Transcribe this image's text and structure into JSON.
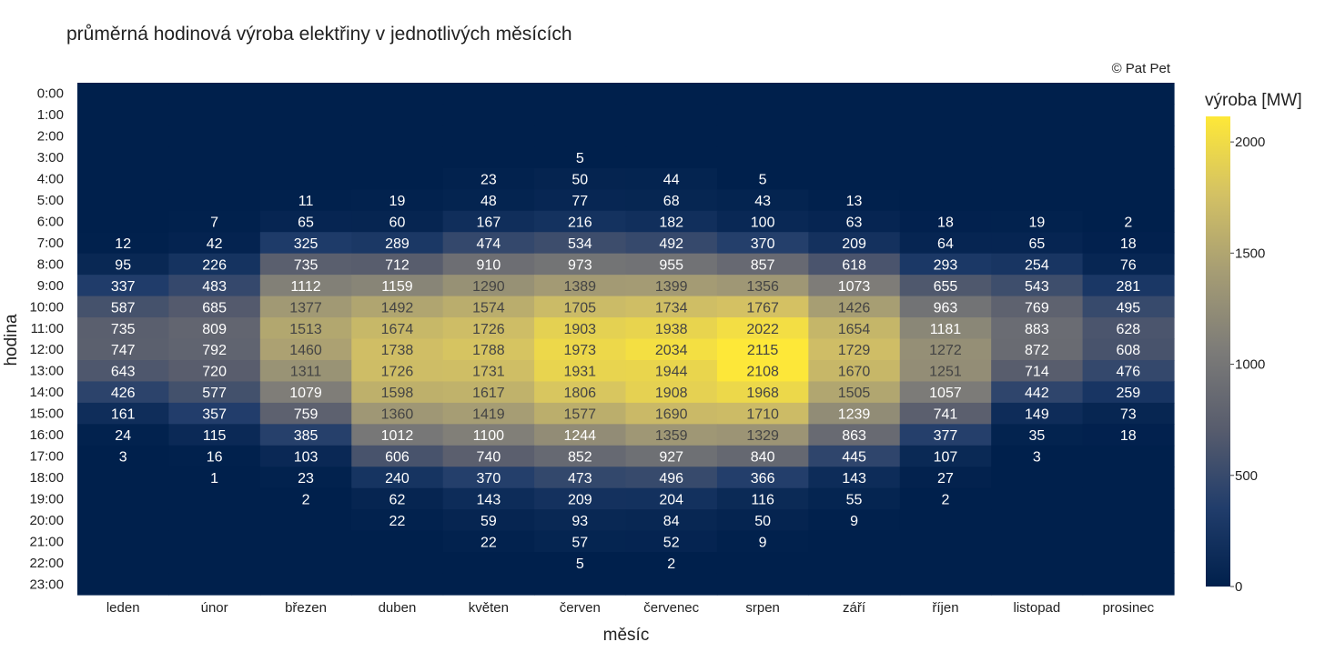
{
  "page": {
    "title": "průměrná hodinová výroba elektřiny v jednotlivých měsících",
    "credit": "© Pat Pet"
  },
  "colors": {
    "background": "#ffffff",
    "scale": [
      "#00204c",
      "#213d6b",
      "#575c6d",
      "#7c7b78",
      "#a59c74",
      "#d3c164",
      "#fee838"
    ]
  },
  "chart_data": {
    "type": "heatmap",
    "title": "průměrná hodinová výroba elektřiny v jednotlivých měsících",
    "xlabel": "měsíc",
    "ylabel": "hodina",
    "colorbar_title": "výroba [MW]",
    "colorbar_ticks": [
      0,
      500,
      1000,
      1500,
      2000
    ],
    "zrange": [
      0,
      2115
    ],
    "x": [
      "leden",
      "únor",
      "březen",
      "duben",
      "květen",
      "červen",
      "červenec",
      "srpen",
      "září",
      "říjen",
      "listopad",
      "prosinec"
    ],
    "y": [
      "0:00",
      "1:00",
      "2:00",
      "3:00",
      "4:00",
      "5:00",
      "6:00",
      "7:00",
      "8:00",
      "9:00",
      "10:00",
      "11:00",
      "12:00",
      "13:00",
      "14:00",
      "15:00",
      "16:00",
      "17:00",
      "18:00",
      "19:00",
      "20:00",
      "21:00",
      "22:00",
      "23:00"
    ],
    "z": [
      [
        null,
        null,
        null,
        null,
        null,
        null,
        null,
        null,
        null,
        null,
        null,
        null
      ],
      [
        null,
        null,
        null,
        null,
        null,
        null,
        null,
        null,
        null,
        null,
        null,
        null
      ],
      [
        null,
        null,
        null,
        null,
        null,
        null,
        null,
        null,
        null,
        null,
        null,
        null
      ],
      [
        null,
        null,
        null,
        null,
        null,
        5,
        null,
        null,
        null,
        null,
        null,
        null
      ],
      [
        null,
        null,
        null,
        null,
        23,
        50,
        44,
        5,
        null,
        null,
        null,
        null
      ],
      [
        null,
        null,
        11,
        19,
        48,
        77,
        68,
        43,
        13,
        null,
        null,
        null
      ],
      [
        null,
        7,
        65,
        60,
        167,
        216,
        182,
        100,
        63,
        18,
        19,
        2
      ],
      [
        12,
        42,
        325,
        289,
        474,
        534,
        492,
        370,
        209,
        64,
        65,
        18
      ],
      [
        95,
        226,
        735,
        712,
        910,
        973,
        955,
        857,
        618,
        293,
        254,
        76
      ],
      [
        337,
        483,
        1112,
        1159,
        1290,
        1389,
        1399,
        1356,
        1073,
        655,
        543,
        281
      ],
      [
        587,
        685,
        1377,
        1492,
        1574,
        1705,
        1734,
        1767,
        1426,
        963,
        769,
        495
      ],
      [
        735,
        809,
        1513,
        1674,
        1726,
        1903,
        1938,
        2022,
        1654,
        1181,
        883,
        628
      ],
      [
        747,
        792,
        1460,
        1738,
        1788,
        1973,
        2034,
        2115,
        1729,
        1272,
        872,
        608
      ],
      [
        643,
        720,
        1311,
        1726,
        1731,
        1931,
        1944,
        2108,
        1670,
        1251,
        714,
        476
      ],
      [
        426,
        577,
        1079,
        1598,
        1617,
        1806,
        1908,
        1968,
        1505,
        1057,
        442,
        259
      ],
      [
        161,
        357,
        759,
        1360,
        1419,
        1577,
        1690,
        1710,
        1239,
        741,
        149,
        73
      ],
      [
        24,
        115,
        385,
        1012,
        1100,
        1244,
        1359,
        1329,
        863,
        377,
        35,
        18
      ],
      [
        3,
        16,
        103,
        606,
        740,
        852,
        927,
        840,
        445,
        107,
        3,
        null
      ],
      [
        null,
        1,
        23,
        240,
        370,
        473,
        496,
        366,
        143,
        27,
        null,
        null
      ],
      [
        null,
        null,
        2,
        62,
        143,
        209,
        204,
        116,
        55,
        2,
        null,
        null
      ],
      [
        null,
        null,
        null,
        22,
        59,
        93,
        84,
        50,
        9,
        null,
        null,
        null
      ],
      [
        null,
        null,
        null,
        null,
        22,
        57,
        52,
        9,
        null,
        null,
        null,
        null
      ],
      [
        null,
        null,
        null,
        null,
        null,
        5,
        2,
        null,
        null,
        null,
        null,
        null
      ],
      [
        null,
        null,
        null,
        null,
        null,
        null,
        null,
        null,
        null,
        null,
        null,
        null
      ]
    ]
  }
}
